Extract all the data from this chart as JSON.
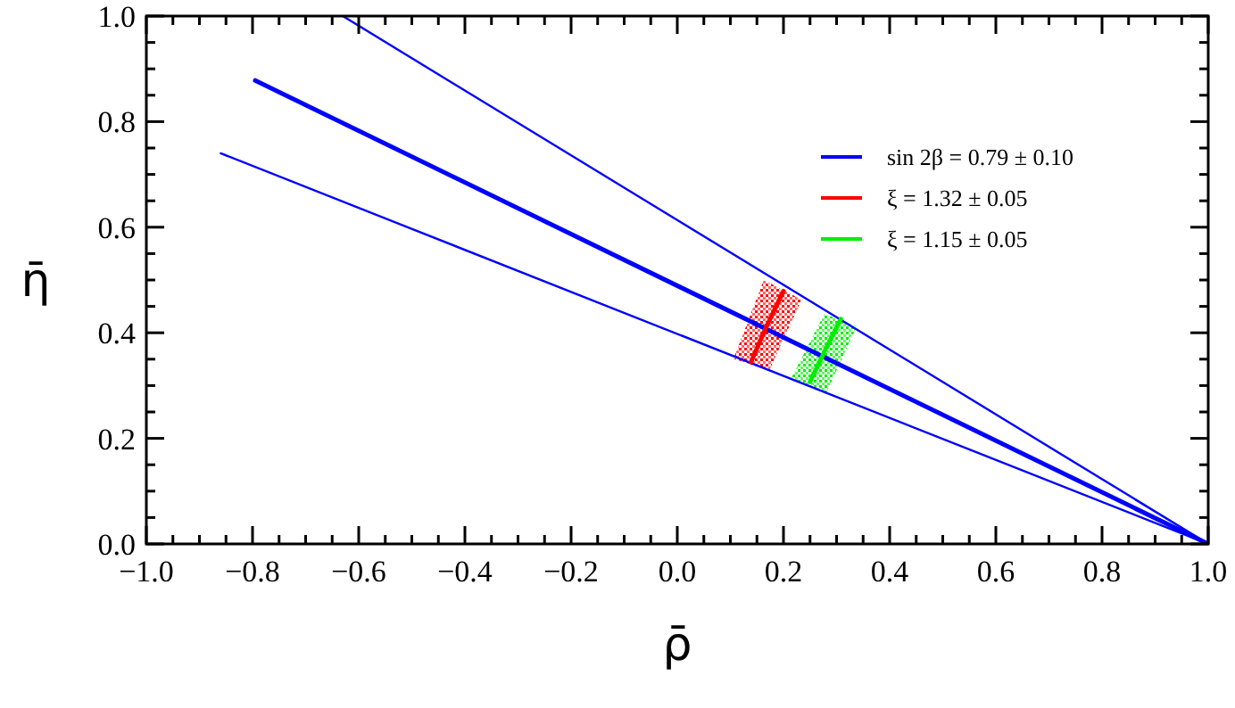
{
  "chart_data": {
    "type": "line",
    "xlabel": "ρ̄",
    "ylabel": "η̄",
    "xlim": [
      -1,
      1
    ],
    "ylim": [
      0,
      1
    ],
    "xticks": [
      {
        "value": -1,
        "label": "−1.0"
      },
      {
        "value": -0.95,
        "label": null
      },
      {
        "value": -0.9,
        "label": null
      },
      {
        "value": -0.85,
        "label": null
      },
      {
        "value": -0.8,
        "label": "−0.8"
      },
      {
        "value": -0.75,
        "label": null
      },
      {
        "value": -0.7,
        "label": null
      },
      {
        "value": -0.65,
        "label": null
      },
      {
        "value": -0.6,
        "label": "−0.6"
      },
      {
        "value": -0.55,
        "label": null
      },
      {
        "value": -0.5,
        "label": null
      },
      {
        "value": -0.45,
        "label": null
      },
      {
        "value": -0.4,
        "label": "−0.4"
      },
      {
        "value": -0.35,
        "label": null
      },
      {
        "value": -0.3,
        "label": null
      },
      {
        "value": -0.25,
        "label": null
      },
      {
        "value": -0.2,
        "label": "−0.2"
      },
      {
        "value": -0.15,
        "label": null
      },
      {
        "value": -0.1,
        "label": null
      },
      {
        "value": -0.05,
        "label": null
      },
      {
        "value": 0,
        "label": "0.0"
      },
      {
        "value": 0.05,
        "label": null
      },
      {
        "value": 0.1,
        "label": null
      },
      {
        "value": 0.15,
        "label": null
      },
      {
        "value": 0.2,
        "label": "0.2"
      },
      {
        "value": 0.25,
        "label": null
      },
      {
        "value": 0.3,
        "label": null
      },
      {
        "value": 0.35,
        "label": null
      },
      {
        "value": 0.4,
        "label": "0.4"
      },
      {
        "value": 0.45,
        "label": null
      },
      {
        "value": 0.5,
        "label": null
      },
      {
        "value": 0.55,
        "label": null
      },
      {
        "value": 0.6,
        "label": "0.6"
      },
      {
        "value": 0.65,
        "label": null
      },
      {
        "value": 0.7,
        "label": null
      },
      {
        "value": 0.75,
        "label": null
      },
      {
        "value": 0.8,
        "label": "0.8"
      },
      {
        "value": 0.85,
        "label": null
      },
      {
        "value": 0.9,
        "label": null
      },
      {
        "value": 0.95,
        "label": null
      },
      {
        "value": 1,
        "label": "1.0"
      }
    ],
    "yticks": [
      {
        "value": 0,
        "label": "0.0"
      },
      {
        "value": 0.05,
        "label": null
      },
      {
        "value": 0.1,
        "label": null
      },
      {
        "value": 0.15,
        "label": null
      },
      {
        "value": 0.2,
        "label": "0.2"
      },
      {
        "value": 0.25,
        "label": null
      },
      {
        "value": 0.3,
        "label": null
      },
      {
        "value": 0.35,
        "label": null
      },
      {
        "value": 0.4,
        "label": "0.4"
      },
      {
        "value": 0.45,
        "label": null
      },
      {
        "value": 0.5,
        "label": null
      },
      {
        "value": 0.55,
        "label": null
      },
      {
        "value": 0.6,
        "label": "0.6"
      },
      {
        "value": 0.65,
        "label": null
      },
      {
        "value": 0.7,
        "label": null
      },
      {
        "value": 0.75,
        "label": null
      },
      {
        "value": 0.8,
        "label": "0.8"
      },
      {
        "value": 0.85,
        "label": null
      },
      {
        "value": 0.9,
        "label": null
      },
      {
        "value": 0.95,
        "label": null
      },
      {
        "value": 1,
        "label": "1.0"
      }
    ],
    "grid": false,
    "legend": "top right",
    "marker": "none",
    "line_style": "solid",
    "series": [
      {
        "type": "area",
        "color": "#ff0000",
        "x": [
          0.163,
          0.234,
          0.173,
          0.106,
          0.163
        ],
        "values": [
          0.5,
          0.463,
          0.328,
          0.351,
          0.5
        ]
      },
      {
        "type": "area",
        "color": "#00ee00",
        "x": [
          0.277,
          0.338,
          0.281,
          0.213,
          0.277
        ],
        "values": [
          0.436,
          0.412,
          0.287,
          0.311,
          0.436
        ]
      },
      {
        "color": "#0000ff",
        "x": [
          -0.63,
          1
        ],
        "values": [
          1,
          0
        ]
      },
      {
        "color": "#0000ff",
        "x": [
          -0.86,
          1
        ],
        "values": [
          0.74,
          0
        ]
      },
      {
        "name": "sin 2β = 0.79 ± 0.10",
        "color": "#0000ff",
        "x": [
          -0.795,
          1
        ],
        "values": [
          0.878,
          0
        ]
      },
      {
        "name": "ξ = 1.32 ± 0.05",
        "color": "#ff0000",
        "x": [
          0.139,
          0.168,
          0.2
        ],
        "values": [
          0.345,
          0.412,
          0.479
        ]
      },
      {
        "name": "ξ = 1.15 ± 0.05",
        "color": "#00ee00",
        "x": [
          0.25,
          0.278,
          0.308
        ],
        "values": [
          0.307,
          0.366,
          0.426
        ]
      }
    ]
  }
}
